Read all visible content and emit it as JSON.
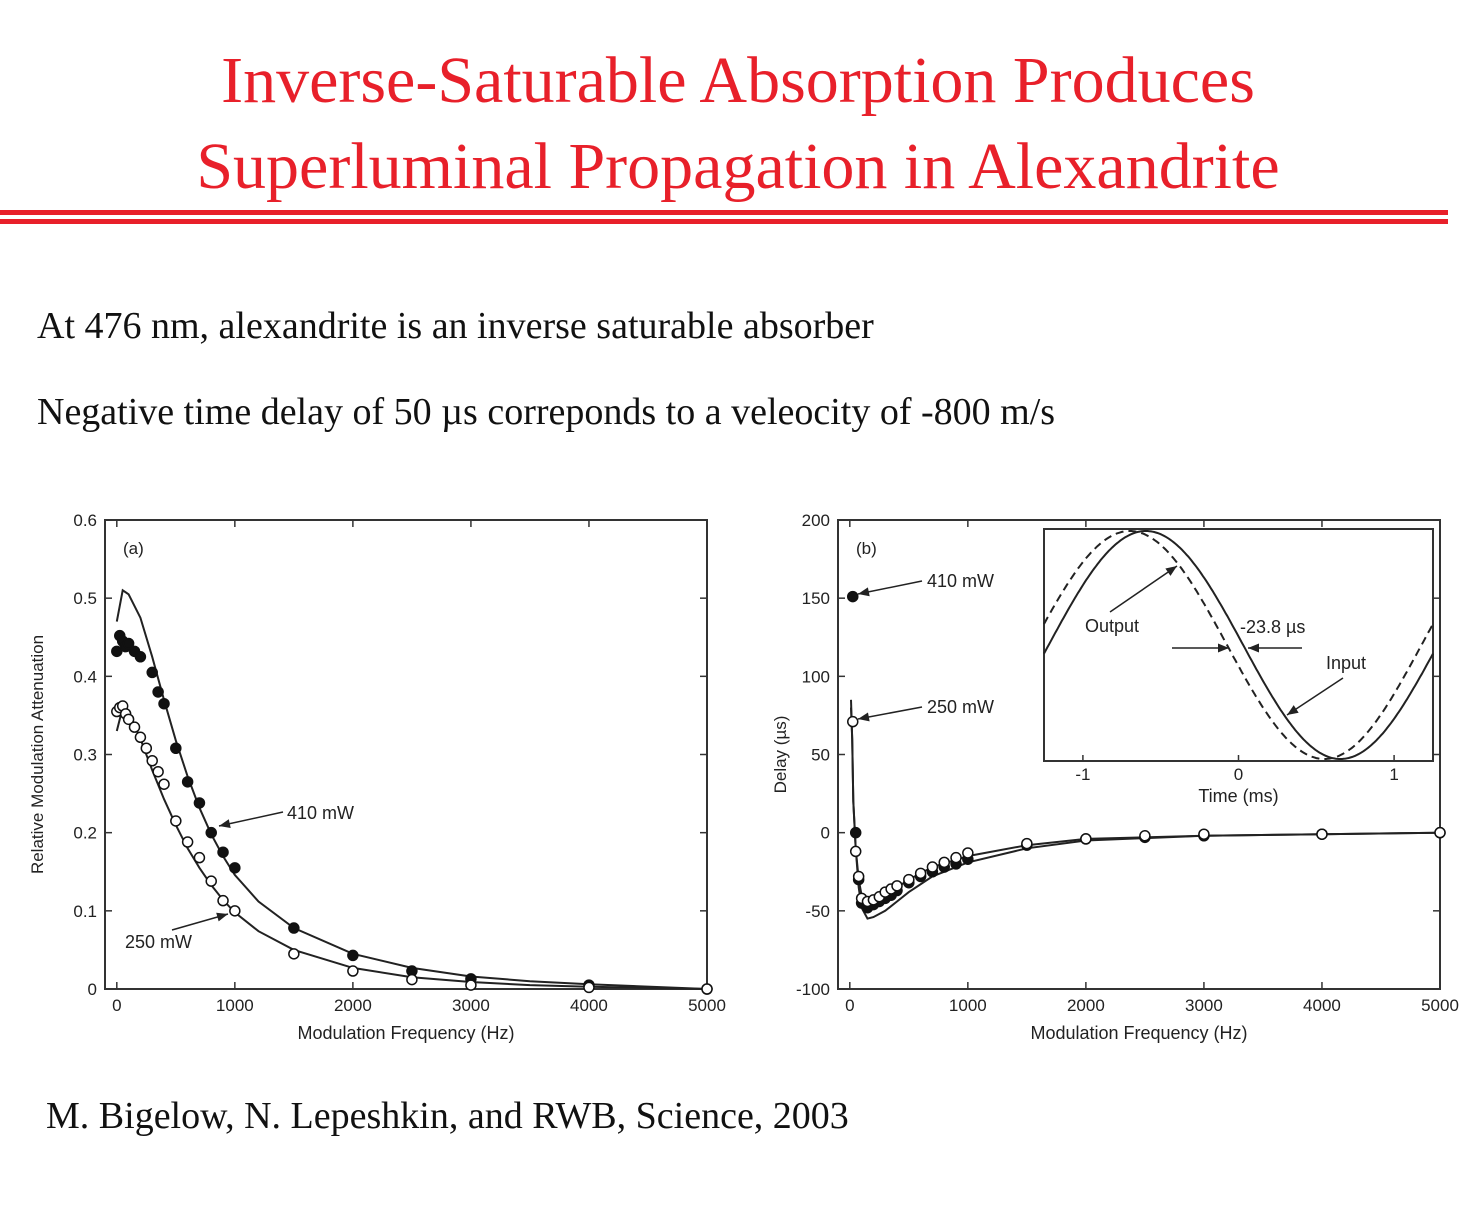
{
  "slide": {
    "title_line1": "Inverse-Saturable Absorption Produces",
    "title_line2": "Superluminal Propagation in Alexandrite",
    "bullet1": "At 476 nm, alexandrite is an inverse saturable absorber",
    "bullet2": "Negative time delay of 50 µs correponds to a veleocity of -800 m/s",
    "citation": "M. Bigelow, N. Lepeshkin, and RWB, Science, 2003",
    "accent_color": "#e8202a"
  },
  "chart_data": [
    {
      "type": "scatter",
      "panel_label": "(a)",
      "xlabel": "Modulation Frequency (Hz)",
      "ylabel": "Relative Modulation Attenuation",
      "xlim": [
        -100,
        5000
      ],
      "ylim": [
        0,
        0.6
      ],
      "xticks": [
        0,
        1000,
        2000,
        3000,
        4000,
        5000
      ],
      "xtick_labels": [
        "0",
        "1000",
        "2000",
        "3000",
        "4000",
        "5000"
      ],
      "yticks": [
        0,
        0.1,
        0.2,
        0.3,
        0.4,
        0.5,
        0.6
      ],
      "ytick_labels": [
        "0",
        "0.1",
        "0.2",
        "0.3",
        "0.4",
        "0.5",
        "0.6"
      ],
      "series": [
        {
          "name": "410 mW",
          "marker": "filled-circle",
          "x": [
            0,
            25,
            50,
            75,
            100,
            150,
            200,
            300,
            350,
            400,
            500,
            600,
            700,
            800,
            900,
            1000,
            1500,
            2000,
            2500,
            3000,
            4000,
            5000
          ],
          "y": [
            0.432,
            0.452,
            0.445,
            0.438,
            0.442,
            0.432,
            0.425,
            0.405,
            0.38,
            0.365,
            0.308,
            0.265,
            0.238,
            0.2,
            0.175,
            0.155,
            0.078,
            0.043,
            0.023,
            0.013,
            0.005,
            0.0
          ]
        },
        {
          "name": "250 mW",
          "marker": "open-circle",
          "x": [
            0,
            25,
            50,
            75,
            100,
            150,
            200,
            250,
            300,
            350,
            400,
            500,
            600,
            700,
            800,
            900,
            1000,
            1500,
            2000,
            2500,
            3000,
            4000,
            5000
          ],
          "y": [
            0.355,
            0.36,
            0.362,
            0.352,
            0.345,
            0.335,
            0.322,
            0.308,
            0.292,
            0.278,
            0.262,
            0.215,
            0.188,
            0.168,
            0.138,
            0.113,
            0.1,
            0.045,
            0.023,
            0.012,
            0.005,
            0.002,
            0.0
          ]
        }
      ],
      "fits": [
        {
          "x": [
            0,
            50,
            100,
            200,
            300,
            400,
            500,
            600,
            700,
            800,
            900,
            1000,
            1200,
            1500,
            2000,
            2500,
            3000,
            3500,
            4000,
            5000
          ],
          "y": [
            0.47,
            0.51,
            0.505,
            0.475,
            0.425,
            0.37,
            0.318,
            0.272,
            0.232,
            0.198,
            0.17,
            0.146,
            0.112,
            0.078,
            0.045,
            0.027,
            0.016,
            0.01,
            0.006,
            0.0
          ]
        },
        {
          "x": [
            0,
            50,
            100,
            200,
            300,
            400,
            500,
            600,
            700,
            800,
            900,
            1000,
            1200,
            1500,
            2000,
            2500,
            3000,
            3500,
            4000,
            5000
          ],
          "y": [
            0.33,
            0.36,
            0.355,
            0.32,
            0.28,
            0.243,
            0.21,
            0.18,
            0.155,
            0.133,
            0.114,
            0.098,
            0.074,
            0.05,
            0.027,
            0.015,
            0.009,
            0.005,
            0.003,
            0.0
          ]
        }
      ],
      "annotations": [
        "410 mW",
        "250 mW"
      ]
    },
    {
      "type": "scatter",
      "panel_label": "(b)",
      "xlabel": "Modulation Frequency (Hz)",
      "ylabel": "Delay (µs)",
      "xlim": [
        -100,
        5000
      ],
      "ylim": [
        -100,
        200
      ],
      "xticks": [
        0,
        1000,
        2000,
        3000,
        4000,
        5000
      ],
      "xtick_labels": [
        "0",
        "1000",
        "2000",
        "3000",
        "4000",
        "5000"
      ],
      "yticks": [
        -100,
        -50,
        0,
        50,
        100,
        150,
        200
      ],
      "ytick_labels": [
        "-100",
        "-50",
        "0",
        "50",
        "100",
        "150",
        "200"
      ],
      "series": [
        {
          "name": "410 mW",
          "marker": "filled-circle",
          "x": [
            25,
            50,
            75,
            100,
            150,
            200,
            250,
            300,
            350,
            400,
            500,
            600,
            700,
            800,
            900,
            1000,
            1500,
            2000,
            2500,
            3000,
            4000,
            5000
          ],
          "y": [
            151,
            0,
            -30,
            -45,
            -48,
            -46,
            -44,
            -42,
            -40,
            -37,
            -32,
            -28,
            -25,
            -22,
            -20,
            -17,
            -8,
            -4,
            -3,
            -2,
            -1,
            0
          ]
        },
        {
          "name": "250 mW",
          "marker": "open-circle",
          "x": [
            25,
            50,
            75,
            100,
            150,
            200,
            250,
            300,
            350,
            400,
            500,
            600,
            700,
            800,
            900,
            1000,
            1500,
            2000,
            2500,
            3000,
            4000,
            5000
          ],
          "y": [
            71,
            -12,
            -28,
            -42,
            -44,
            -43,
            -41,
            -38,
            -36,
            -34,
            -30,
            -26,
            -22,
            -19,
            -16,
            -13,
            -7,
            -4,
            -2,
            -1,
            -1,
            0
          ]
        }
      ],
      "fits": [
        {
          "x": [
            10,
            20,
            30,
            50,
            75,
            100,
            150,
            200,
            300,
            400,
            500,
            700,
            1000,
            1500,
            2000,
            3000,
            4000,
            5000
          ],
          "y": [
            80,
            60,
            20,
            -10,
            -35,
            -48,
            -55,
            -54,
            -50,
            -44,
            -38,
            -28,
            -19,
            -10,
            -5,
            -2,
            -1,
            0
          ]
        },
        {
          "x": [
            10,
            20,
            30,
            50,
            75,
            100,
            150,
            200,
            300,
            400,
            500,
            700,
            1000,
            1500,
            2000,
            3000,
            4000,
            5000
          ],
          "y": [
            85,
            60,
            20,
            -10,
            -30,
            -40,
            -44,
            -43,
            -39,
            -35,
            -30,
            -22,
            -15,
            -8,
            -4,
            -2,
            -1,
            0
          ]
        }
      ],
      "annotations": [
        "410 mW",
        "250 mW"
      ],
      "inset": {
        "type": "line",
        "xlabel": "Time (ms)",
        "xlim": [
          -1.25,
          1.25
        ],
        "xticks": [
          -1,
          0,
          1
        ],
        "xtick_labels": [
          "-1",
          "0",
          "1"
        ],
        "series_labels": [
          "Output",
          "Input"
        ],
        "delay_label": "-23.8 µs",
        "period_ms": 2.5,
        "output_shift_ms": -0.0238
      }
    }
  ]
}
